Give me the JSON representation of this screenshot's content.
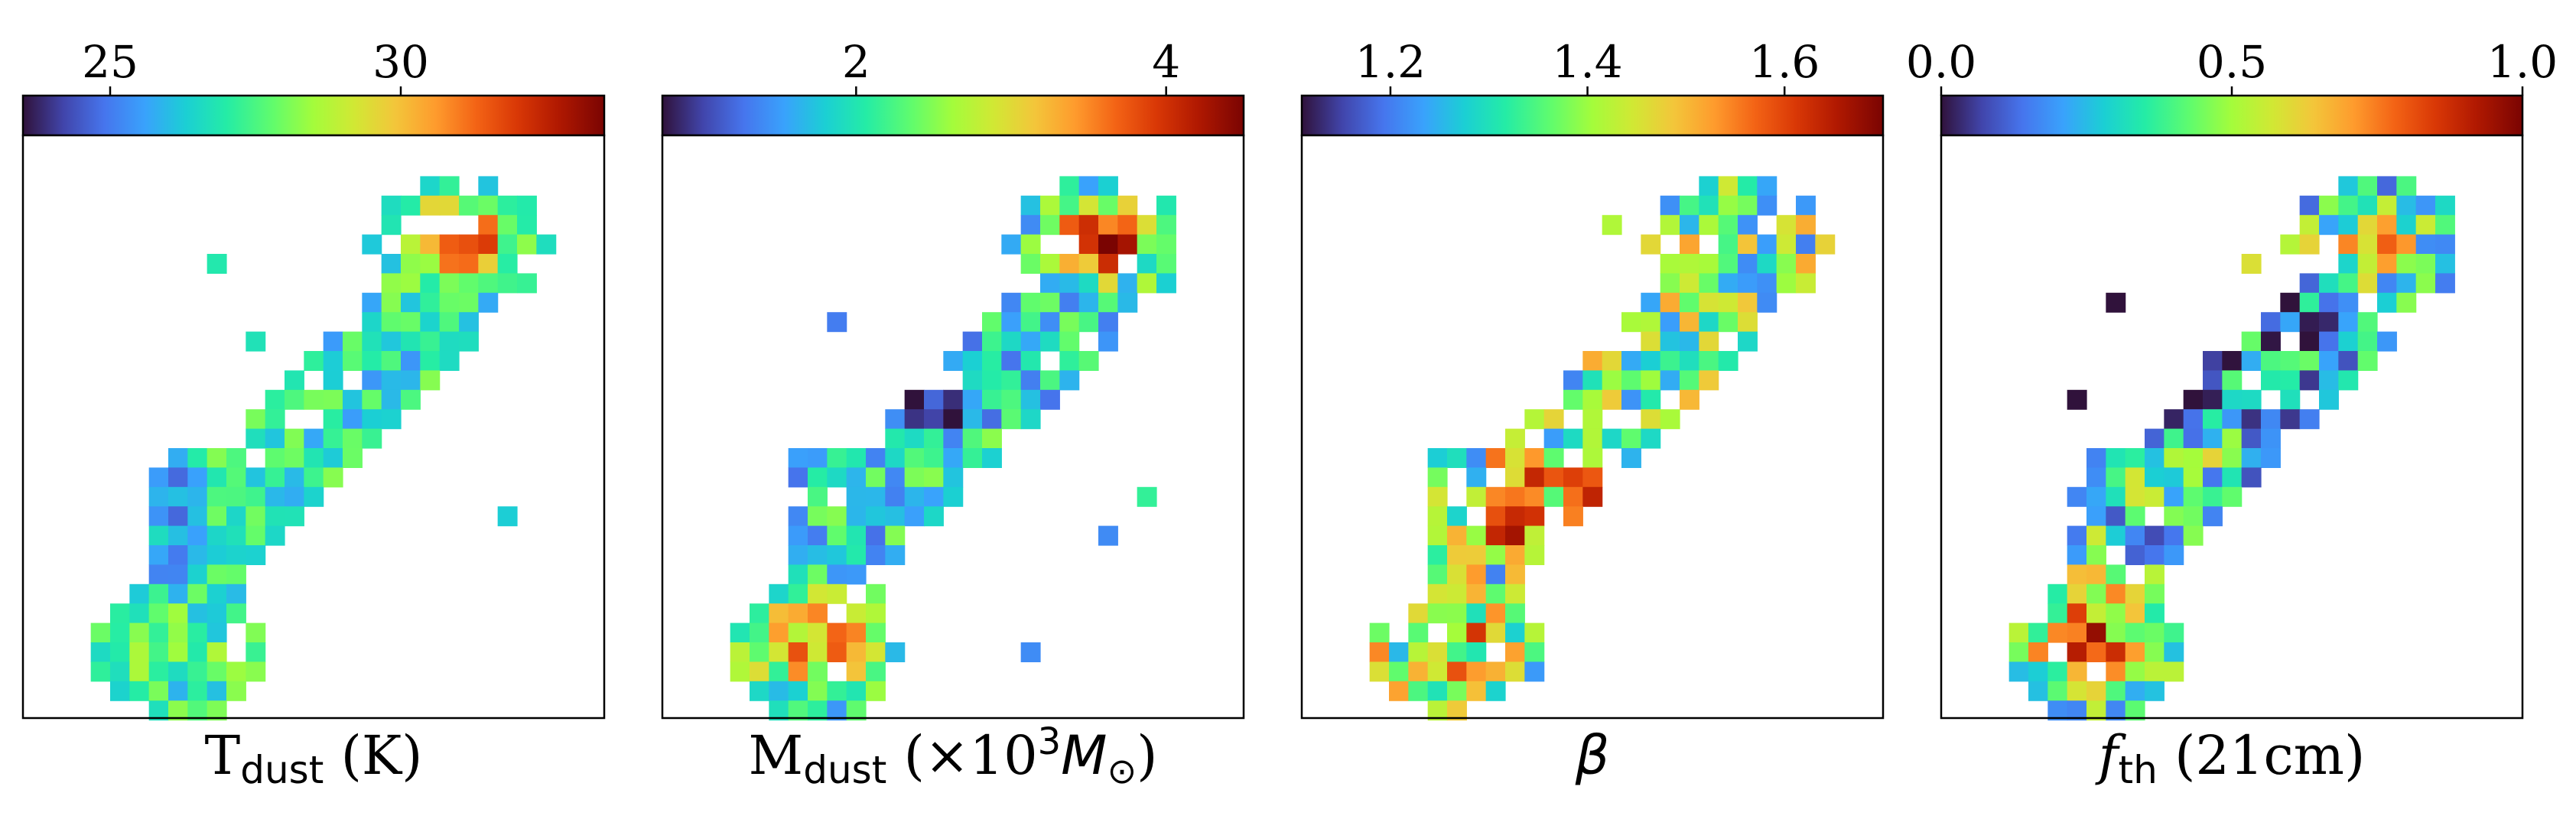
{
  "figure": {
    "panels": [
      {
        "id": "tdust",
        "label_main": "T",
        "label_sub": "dust",
        "label_tail": " (K)",
        "label_style": "serif-main-sans-sub",
        "cbar_range": [
          23.5,
          33.5
        ],
        "ticks": [
          25,
          30
        ],
        "tick_labels": [
          "25",
          "30"
        ],
        "seed": 11,
        "cells": [
          {
            "x": 5,
            "y": 22,
            "v": 0.45
          }
        ]
      },
      {
        "id": "mdust",
        "label_main": "M",
        "label_sub": "dust",
        "label_tail": " (×10",
        "label_sup": "3",
        "label_after_sup": "M",
        "label_odot": "⊙",
        "label_close": ")",
        "label_style": "mdust",
        "cbar_range": [
          0.75,
          4.5
        ],
        "ticks": [
          2,
          4
        ],
        "tick_labels": [
          "2",
          "4"
        ],
        "seed": 23,
        "cells": []
      },
      {
        "id": "beta",
        "label_main": "β",
        "label_style": "italic",
        "cbar_range": [
          1.11,
          1.7
        ],
        "ticks": [
          1.2,
          1.4,
          1.6
        ],
        "tick_labels": [
          "1.2",
          "1.4",
          "1.6"
        ],
        "seed": 37,
        "cells": []
      },
      {
        "id": "fth",
        "label_main": "f",
        "label_sub": "th",
        "label_tail": " (21cm)",
        "label_style": "italic-main-sans-sub",
        "cbar_range": [
          0.0,
          1.0
        ],
        "ticks": [
          0.0,
          0.5,
          1.0
        ],
        "tick_labels": [
          "0.0",
          "0.5",
          "1.0"
        ],
        "seed": 53,
        "cells": []
      }
    ]
  },
  "chart_data": [
    {
      "type": "heatmap",
      "xlabel": "Tdust (K)",
      "colorbar_ticks": [
        "25",
        "30"
      ],
      "colorbar_range": [
        23.5,
        33.5
      ],
      "colormap": "turbo",
      "grid": false,
      "description_values": "pixel map of dust temperature, values roughly 24-33 K; hottest (~32-33 K) cells clustered in upper-right clump, ~28-29 K clump at lower-left"
    },
    {
      "type": "heatmap",
      "xlabel": "Mdust (×10^3 M⊙)",
      "colorbar_ticks": [
        "2",
        "4"
      ],
      "colorbar_range": [
        0.75,
        4.5
      ],
      "colormap": "turbo",
      "grid": false
    },
    {
      "type": "heatmap",
      "xlabel": "β",
      "colorbar_ticks": [
        "1.2",
        "1.4",
        "1.6"
      ],
      "colorbar_range": [
        1.11,
        1.7
      ],
      "colormap": "turbo",
      "grid": false
    },
    {
      "type": "heatmap",
      "xlabel": "fth (21cm)",
      "colorbar_ticks": [
        "0.0",
        "0.5",
        "1.0"
      ],
      "colorbar_range": [
        0.0,
        1.0
      ],
      "colormap": "turbo",
      "grid": false
    }
  ]
}
